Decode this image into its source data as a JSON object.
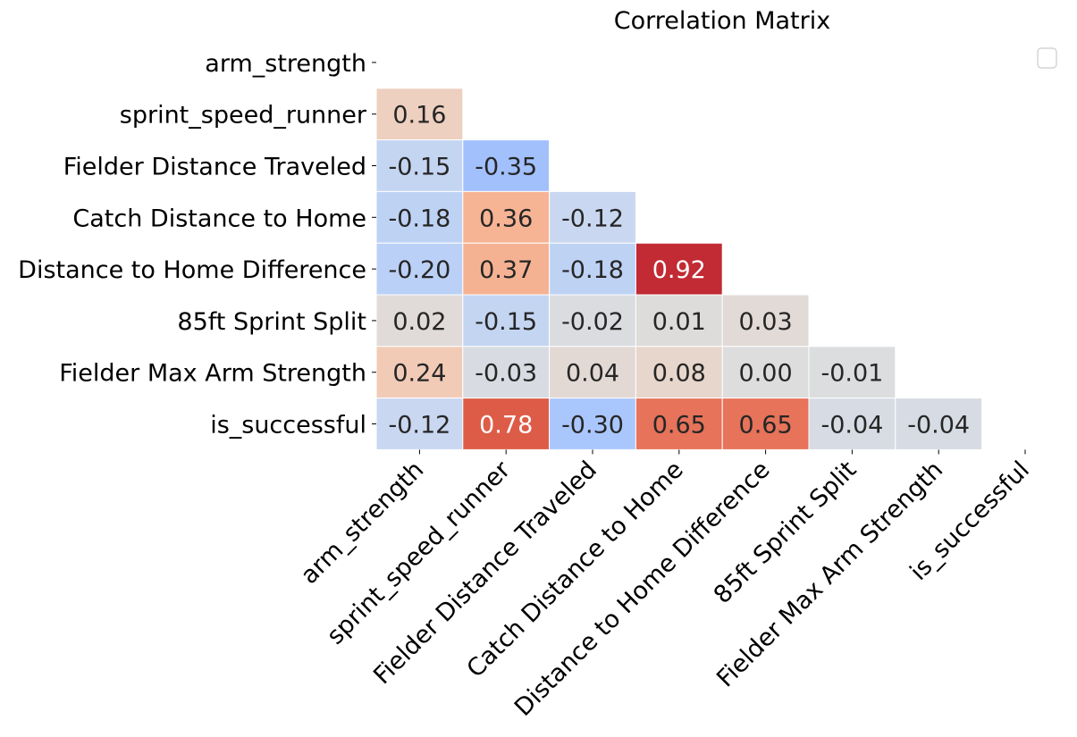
{
  "chart_data": {
    "type": "heatmap",
    "title": "Correlation Matrix",
    "xlabel": "",
    "ylabel": "",
    "colormap": "coolwarm",
    "vlim": [
      -1,
      1
    ],
    "mask": "upper-triangle-including-diagonal",
    "legend": "top-right",
    "labels": [
      "arm_strength",
      "sprint_speed_runner",
      "Fielder Distance Traveled",
      "Catch Distance to Home",
      "Distance to Home Difference",
      "85ft Sprint Split",
      "Fielder Max Arm Strength",
      "is_successful"
    ],
    "cells": [
      [],
      [
        {
          "v": 0.16,
          "t": "0.16"
        }
      ],
      [
        {
          "v": -0.15,
          "t": "-0.15"
        },
        {
          "v": -0.35,
          "t": "-0.35"
        }
      ],
      [
        {
          "v": -0.18,
          "t": "-0.18"
        },
        {
          "v": 0.36,
          "t": "0.36"
        },
        {
          "v": -0.12,
          "t": "-0.12"
        }
      ],
      [
        {
          "v": -0.2,
          "t": "-0.20"
        },
        {
          "v": 0.37,
          "t": "0.37"
        },
        {
          "v": -0.18,
          "t": "-0.18"
        },
        {
          "v": 0.92,
          "t": "0.92"
        }
      ],
      [
        {
          "v": 0.02,
          "t": "0.02"
        },
        {
          "v": -0.15,
          "t": "-0.15"
        },
        {
          "v": -0.02,
          "t": "-0.02"
        },
        {
          "v": 0.01,
          "t": "0.01"
        },
        {
          "v": 0.03,
          "t": "0.03"
        }
      ],
      [
        {
          "v": 0.24,
          "t": "0.24"
        },
        {
          "v": -0.03,
          "t": "-0.03"
        },
        {
          "v": 0.04,
          "t": "0.04"
        },
        {
          "v": 0.08,
          "t": "0.08"
        },
        {
          "v": 0.0,
          "t": "0.00"
        },
        {
          "v": -0.01,
          "t": "-0.01"
        }
      ],
      [
        {
          "v": -0.12,
          "t": "-0.12"
        },
        {
          "v": 0.78,
          "t": "0.78"
        },
        {
          "v": -0.3,
          "t": "-0.30"
        },
        {
          "v": 0.65,
          "t": "0.65"
        },
        {
          "v": 0.65,
          "t": "0.65"
        },
        {
          "v": -0.04,
          "t": "-0.04"
        },
        {
          "v": -0.04,
          "t": "-0.04"
        }
      ]
    ]
  }
}
